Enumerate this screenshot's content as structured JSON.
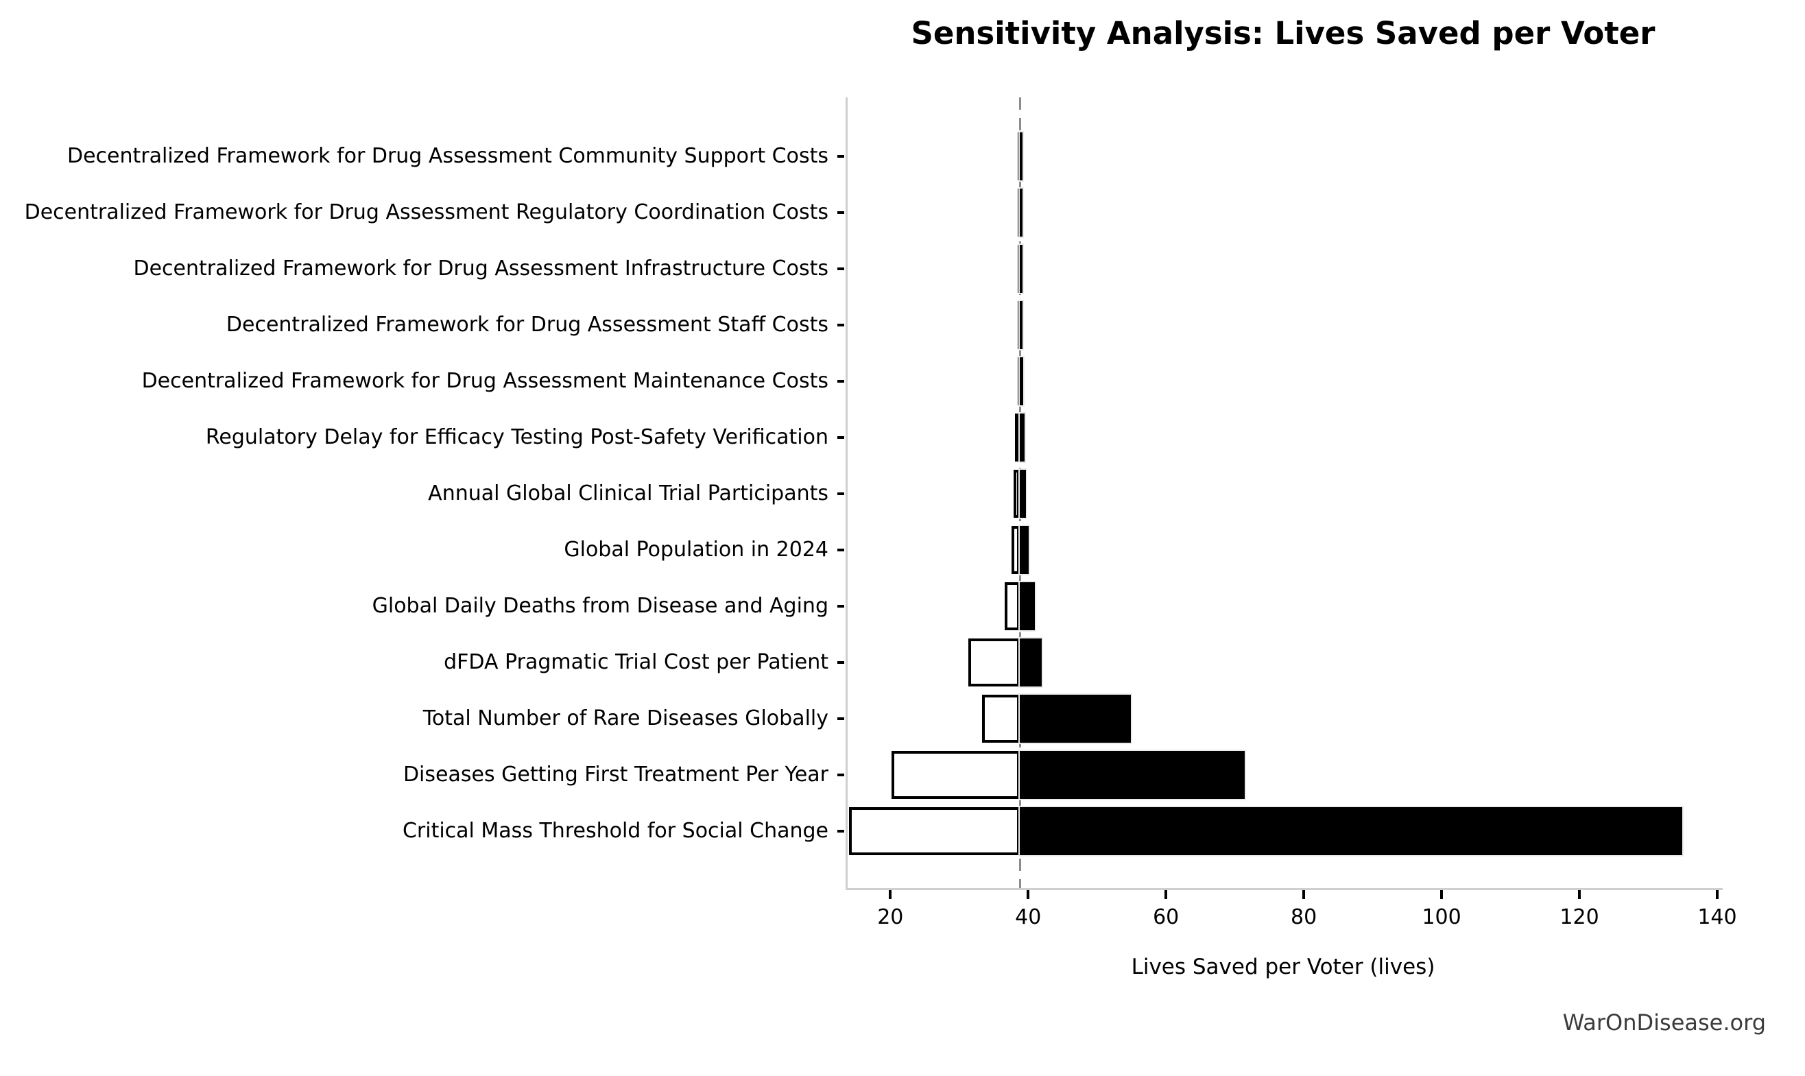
{
  "watermark": "WarOnDisease.org",
  "chart_data": {
    "type": "bar",
    "subtype": "tornado-sensitivity",
    "orientation": "horizontal",
    "title": "Sensitivity Analysis: Lives Saved per Voter",
    "xlabel": "Lives Saved per Voter (lives)",
    "baseline": 38.5,
    "xlim": [
      13.5,
      140.5
    ],
    "x_ticks": [
      20,
      40,
      60,
      80,
      100,
      120,
      140
    ],
    "grid": false,
    "legend": "none",
    "colors": {
      "low_bar_fill": "#ffffff",
      "low_bar_edge": "#000000",
      "high_bar_fill": "#000000",
      "baseline_line": "#8c8c8c",
      "spine": "#cfcfcf",
      "watermark_text": "#3b3b3b"
    },
    "rows": [
      {
        "label": "Decentralized Framework for Drug Assessment Community Support Costs",
        "low": 38.2,
        "high": 38.9
      },
      {
        "label": "Decentralized Framework for Drug Assessment Regulatory Coordination Costs",
        "low": 38.2,
        "high": 38.9
      },
      {
        "label": "Decentralized Framework for Drug Assessment Infrastructure Costs",
        "low": 38.2,
        "high": 38.9
      },
      {
        "label": "Decentralized Framework for Drug Assessment Staff Costs",
        "low": 38.2,
        "high": 38.9
      },
      {
        "label": "Decentralized Framework for Drug Assessment Maintenance Costs",
        "low": 38.2,
        "high": 39.0
      },
      {
        "label": "Regulatory Delay for Efficacy Testing Post-Safety Verification",
        "low": 37.8,
        "high": 39.2
      },
      {
        "label": "Annual Global Clinical Trial Participants",
        "low": 37.6,
        "high": 39.4
      },
      {
        "label": "Global Population in 2024",
        "low": 37.3,
        "high": 39.8
      },
      {
        "label": "Global Daily Deaths from Disease and Aging",
        "low": 36.3,
        "high": 40.7
      },
      {
        "label": "dFDA Pragmatic Trial Cost per Patient",
        "low": 31.0,
        "high": 41.7
      },
      {
        "label": "Total Number of Rare Diseases Globally",
        "low": 33.0,
        "high": 54.6
      },
      {
        "label": "Diseases Getting First Treatment Per Year",
        "low": 19.9,
        "high": 71.1
      },
      {
        "label": "Critical Mass Threshold for Social Change",
        "low": 13.7,
        "high": 134.6
      }
    ]
  }
}
